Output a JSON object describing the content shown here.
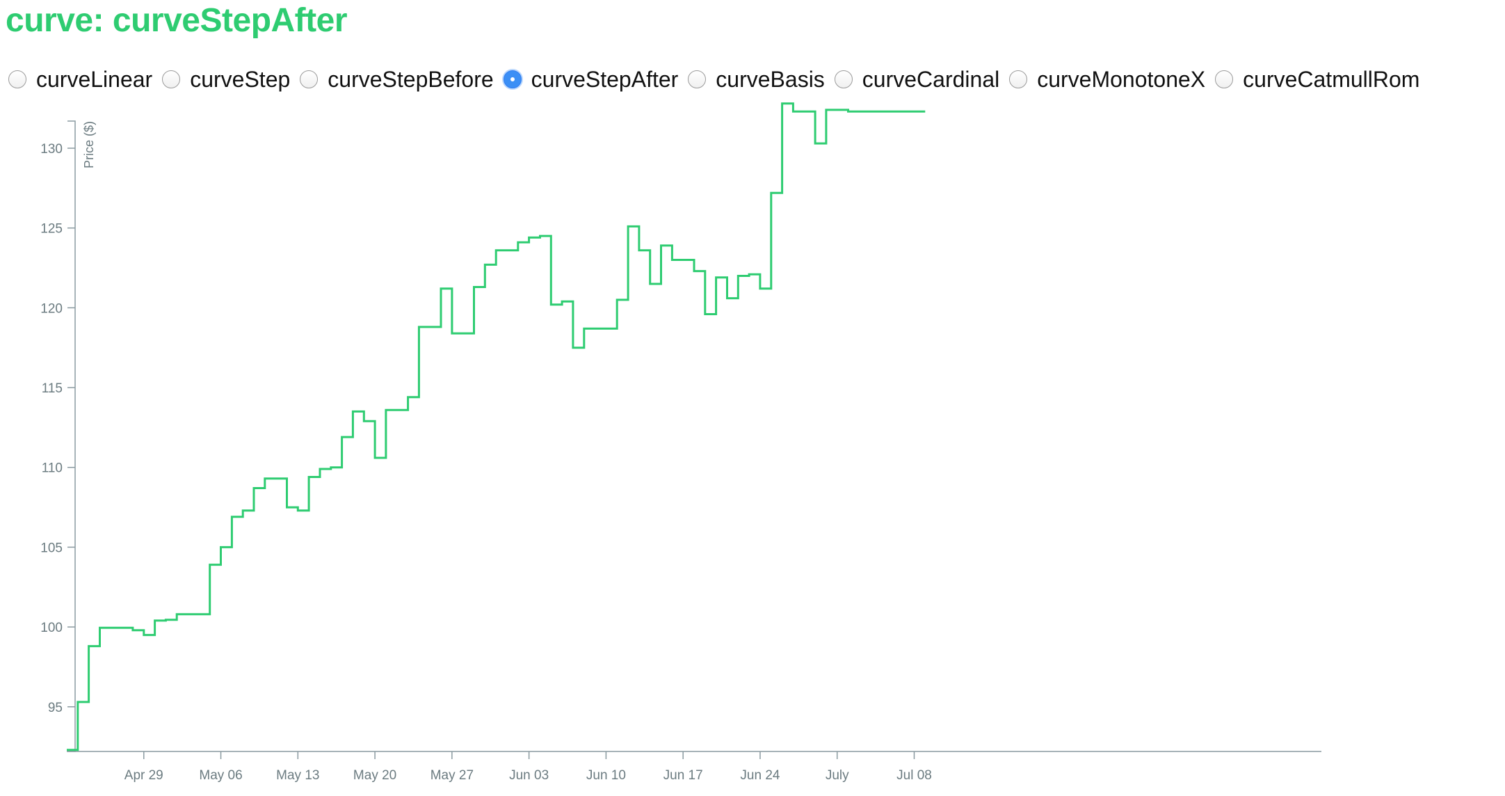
{
  "title": "curve: curveStepAfter",
  "colors": {
    "accent": "#2ecc71",
    "axis": "#8a9aa0",
    "tick_text": "#6b7b80",
    "radio_checked": "#3b8ff5"
  },
  "curve_options": [
    {
      "label": "curveLinear",
      "checked": false
    },
    {
      "label": "curveStep",
      "checked": false
    },
    {
      "label": "curveStepBefore",
      "checked": false
    },
    {
      "label": "curveStepAfter",
      "checked": true
    },
    {
      "label": "curveBasis",
      "checked": false
    },
    {
      "label": "curveCardinal",
      "checked": false
    },
    {
      "label": "curveMonotoneX",
      "checked": false
    },
    {
      "label": "curveCatmullRom",
      "checked": false
    }
  ],
  "chart_data": {
    "type": "line",
    "curve": "stepAfter",
    "title": "",
    "xlabel": "",
    "ylabel": "Price ($)",
    "ylim": [
      92.2,
      131.7
    ],
    "xlim_days": [
      0,
      114
    ],
    "grid": false,
    "y_ticks": [
      95,
      100,
      105,
      110,
      115,
      120,
      125,
      130
    ],
    "x_ticks": [
      {
        "day": 7,
        "label": "Apr 29"
      },
      {
        "day": 14,
        "label": "May 06"
      },
      {
        "day": 21,
        "label": "May 13"
      },
      {
        "day": 28,
        "label": "May 20"
      },
      {
        "day": 35,
        "label": "May 27"
      },
      {
        "day": 42,
        "label": "Jun 03"
      },
      {
        "day": 49,
        "label": "Jun 10"
      },
      {
        "day": 56,
        "label": "Jun 17"
      },
      {
        "day": 63,
        "label": "Jun 24"
      },
      {
        "day": 70,
        "label": "July"
      },
      {
        "day": 77,
        "label": "Jul 08"
      }
    ],
    "series": [
      {
        "name": "Price",
        "x_days": [
          0,
          1,
          2,
          3,
          6,
          7,
          8,
          9,
          10,
          13,
          14,
          15,
          16,
          17,
          18,
          20,
          21,
          22,
          23,
          24,
          25,
          26,
          27,
          28,
          29,
          30,
          31,
          32,
          34,
          35,
          36,
          37,
          38,
          39,
          41,
          42,
          43,
          44,
          45,
          46,
          47,
          50,
          51,
          52,
          53,
          54,
          55,
          57,
          58,
          59,
          60,
          61,
          62,
          63,
          64,
          65,
          66,
          67,
          68,
          69,
          71,
          72,
          73,
          74,
          75,
          76,
          77,
          78
        ],
        "values": [
          92.3,
          95.3,
          98.8,
          99.95,
          99.8,
          99.5,
          100.4,
          100.45,
          100.8,
          103.9,
          105.0,
          106.9,
          107.3,
          108.7,
          109.3,
          107.5,
          107.3,
          109.4,
          109.9,
          110.0,
          111.9,
          113.5,
          112.9,
          110.6,
          113.6,
          113.6,
          114.4,
          118.8,
          121.2,
          118.4,
          118.4,
          121.3,
          122.7,
          123.6,
          124.1,
          124.4,
          124.5,
          120.2,
          120.4,
          117.5,
          118.7,
          120.5,
          125.1,
          123.6,
          121.5,
          123.9,
          123.0,
          122.3,
          119.6,
          121.9,
          120.6,
          122.0,
          122.1,
          121.2,
          127.2,
          132.8,
          132.3,
          132.3,
          130.3,
          132.4,
          132.3,
          132.3,
          132.3,
          132.3,
          132.3,
          132.3,
          132.3,
          132.3
        ]
      }
    ]
  }
}
